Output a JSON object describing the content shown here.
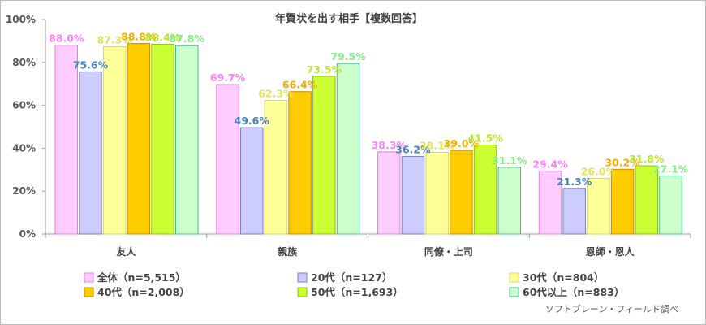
{
  "chart_data": {
    "type": "bar",
    "title": "年賀状を出す相手【複数回答】",
    "categories": [
      "友人",
      "親族",
      "同僚・上司",
      "恩師・恩人"
    ],
    "ylim": [
      0,
      100
    ],
    "yticks": [
      "0%",
      "20%",
      "40%",
      "60%",
      "80%",
      "100%"
    ],
    "grid": false,
    "legend_position": "bottom",
    "series": [
      {
        "name": "全体（n=5,515）",
        "values": [
          88.0,
          69.7,
          38.3,
          29.4
        ],
        "labels": [
          "88.0%",
          "69.7%",
          "38.3%",
          "29.4%"
        ],
        "color": "#ffccff",
        "stroke": "#e080e0",
        "label_color": "#ff80ff"
      },
      {
        "name": "20代（n=127）",
        "values": [
          75.6,
          49.6,
          36.2,
          21.3
        ],
        "labels": [
          "75.6%",
          "49.6%",
          "36.2%",
          "21.3%"
        ],
        "color": "#ccccff",
        "stroke": "#7f7fbf",
        "label_color": "#4a84c4"
      },
      {
        "name": "30代（n=804）",
        "values": [
          87.3,
          62.3,
          38.1,
          26.0
        ],
        "labels": [
          "87.3%",
          "62.3%",
          "38.1%",
          "26.0%"
        ],
        "color": "#ffff99",
        "stroke": "#d8d860",
        "label_color": "#e3e35a"
      },
      {
        "name": "40代（n=2,008）",
        "values": [
          88.8,
          66.4,
          39.0,
          30.2
        ],
        "labels": [
          "88.8%",
          "66.4%",
          "39.0%",
          "30.2%"
        ],
        "color": "#ffcc00",
        "stroke": "#c88a00",
        "label_color": "#f0b000"
      },
      {
        "name": "50代（n=1,693）",
        "values": [
          88.4,
          73.5,
          41.5,
          31.8
        ],
        "labels": [
          "88.4%",
          "73.5%",
          "41.5%",
          "31.8%"
        ],
        "color": "#ccff33",
        "stroke": "#8cbf10",
        "label_color": "#b8e830"
      },
      {
        "name": "60代以上（n=883）",
        "values": [
          87.8,
          79.5,
          31.1,
          27.1
        ],
        "labels": [
          "87.8%",
          "79.5%",
          "31.1%",
          "27.1%"
        ],
        "color": "#ccffcc",
        "stroke": "#40c090",
        "label_color": "#80ee80"
      }
    ],
    "source": "ソフトブレーン・フィールド調べ"
  }
}
